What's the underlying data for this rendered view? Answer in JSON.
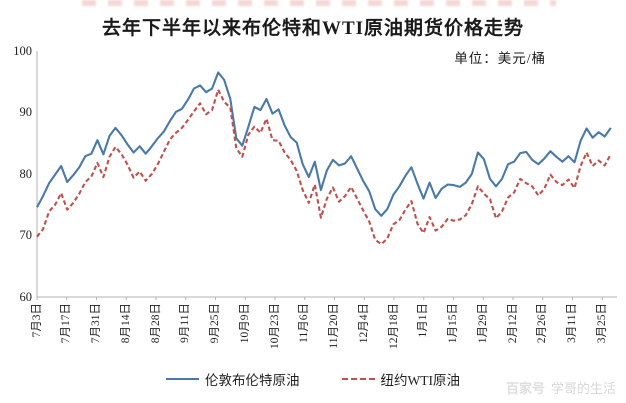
{
  "page": {
    "watermark_logo": "百家号",
    "watermark_name": "学哥的生活"
  },
  "chart_data": {
    "type": "line",
    "title": "去年下半年以来布伦特和WTI原油期货价格走势",
    "unit_label": "单位：美元/桶",
    "xlabel": "",
    "ylabel": "",
    "ylim": [
      60,
      100
    ],
    "yticks": [
      100,
      90,
      80,
      70,
      60
    ],
    "grid": false,
    "legend_position": "bottom",
    "x_tick_interval_days": 14,
    "total_days": 270,
    "x_tick_labels": [
      "7月3日",
      "7月17日",
      "7月31日",
      "8月14日",
      "8月28日",
      "9月11日",
      "9月25日",
      "10月9日",
      "10月23日",
      "11月6日",
      "11月20日",
      "12月4日",
      "12月18日",
      "1月1日",
      "1月15日",
      "1月29日",
      "2月12日",
      "2月26日",
      "3月11日",
      "3月25日"
    ],
    "axis_color": "#b3b3b3",
    "series": [
      {
        "name": "伦敦布伦特原油",
        "color": "#4a79a8",
        "line_style": "solid",
        "values": [
          74.6,
          76.4,
          78.5,
          79.9,
          81.3,
          78.7,
          79.8,
          81.1,
          82.9,
          83.3,
          85.5,
          83.2,
          86.2,
          87.5,
          86.3,
          84.8,
          83.5,
          84.5,
          83.3,
          84.5,
          85.8,
          86.9,
          88.6,
          90.1,
          90.6,
          92.1,
          93.9,
          94.4,
          93.3,
          93.9,
          96.5,
          95.3,
          92.2,
          85.8,
          84.6,
          87.7,
          90.9,
          90.4,
          92.2,
          89.8,
          90.5,
          87.9,
          86.0,
          85.1,
          81.6,
          79.5,
          82.0,
          77.4,
          80.6,
          82.3,
          81.4,
          81.7,
          82.9,
          80.9,
          78.9,
          77.2,
          74.3,
          73.2,
          74.3,
          76.6,
          78.0,
          79.7,
          81.1,
          78.4,
          76.0,
          78.6,
          76.1,
          77.6,
          78.3,
          78.2,
          77.9,
          78.6,
          80.0,
          83.5,
          82.4,
          79.2,
          78.0,
          79.2,
          81.6,
          82.0,
          83.4,
          83.6,
          82.3,
          81.6,
          82.5,
          83.7,
          82.8,
          82.0,
          82.9,
          81.9,
          85.4,
          87.4,
          85.9,
          86.8,
          86.1,
          87.5
        ]
      },
      {
        "name": "纽约WTI原油",
        "color": "#c0504d",
        "line_style": "dashed",
        "values": [
          69.8,
          71.0,
          73.9,
          75.0,
          76.9,
          74.2,
          75.3,
          76.8,
          78.7,
          79.6,
          81.8,
          79.5,
          82.8,
          84.4,
          83.2,
          81.5,
          79.4,
          80.4,
          78.9,
          80.0,
          81.6,
          83.6,
          85.6,
          86.7,
          87.5,
          88.8,
          90.2,
          91.5,
          89.7,
          90.4,
          93.7,
          91.7,
          90.8,
          84.2,
          82.8,
          86.4,
          87.7,
          86.7,
          89.0,
          85.5,
          85.4,
          83.5,
          82.3,
          80.5,
          77.4,
          75.3,
          78.3,
          72.9,
          76.0,
          77.8,
          75.5,
          76.4,
          77.9,
          76.0,
          74.1,
          72.3,
          69.3,
          68.6,
          69.5,
          71.8,
          72.5,
          74.2,
          75.6,
          71.9,
          70.4,
          73.0,
          70.8,
          71.4,
          72.7,
          72.4,
          72.6,
          73.3,
          75.1,
          78.0,
          76.8,
          75.9,
          72.8,
          73.9,
          76.2,
          77.0,
          79.2,
          78.5,
          78.0,
          76.5,
          77.6,
          79.9,
          78.7,
          78.2,
          79.1,
          77.7,
          81.3,
          83.5,
          81.3,
          82.2,
          81.4,
          83.2
        ]
      }
    ]
  }
}
